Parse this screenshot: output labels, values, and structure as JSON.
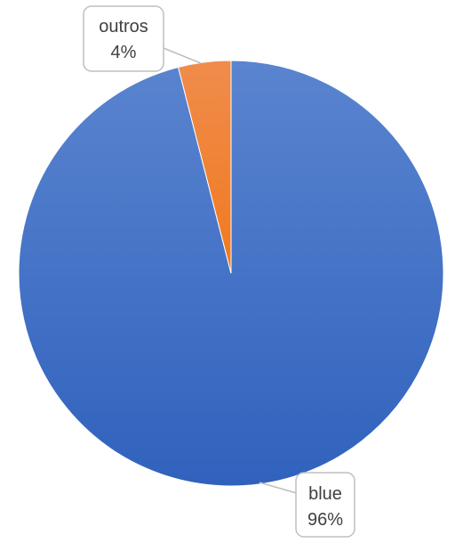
{
  "chart_data": {
    "type": "pie",
    "slices": [
      {
        "label": "blue",
        "value": 96,
        "pct_label": "96%",
        "color": "#4472c4"
      },
      {
        "label": "outros",
        "value": 4,
        "pct_label": "4%",
        "color": "#ed7d31"
      }
    ],
    "start_angle_deg": 0,
    "direction": "clockwise",
    "legend": "none",
    "data_labels": "callouts"
  }
}
